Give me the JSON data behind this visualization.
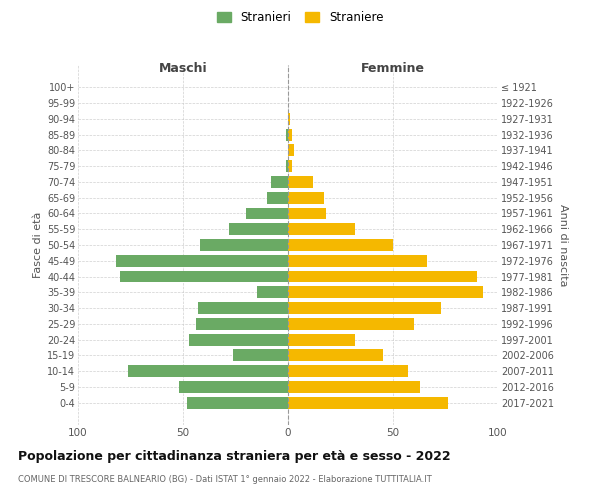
{
  "age_groups": [
    "100+",
    "95-99",
    "90-94",
    "85-89",
    "80-84",
    "75-79",
    "70-74",
    "65-69",
    "60-64",
    "55-59",
    "50-54",
    "45-49",
    "40-44",
    "35-39",
    "30-34",
    "25-29",
    "20-24",
    "15-19",
    "10-14",
    "5-9",
    "0-4"
  ],
  "birth_years": [
    "≤ 1921",
    "1922-1926",
    "1927-1931",
    "1932-1936",
    "1937-1941",
    "1942-1946",
    "1947-1951",
    "1952-1956",
    "1957-1961",
    "1962-1966",
    "1967-1971",
    "1972-1976",
    "1977-1981",
    "1982-1986",
    "1987-1991",
    "1992-1996",
    "1997-2001",
    "2002-2006",
    "2007-2011",
    "2012-2016",
    "2017-2021"
  ],
  "males": [
    0,
    0,
    0,
    1,
    0,
    1,
    8,
    10,
    20,
    28,
    42,
    82,
    80,
    15,
    43,
    44,
    47,
    26,
    76,
    52,
    48
  ],
  "females": [
    0,
    0,
    1,
    2,
    3,
    2,
    12,
    17,
    18,
    32,
    50,
    66,
    90,
    93,
    73,
    60,
    32,
    45,
    57,
    63,
    76
  ],
  "male_color": "#6aaa64",
  "female_color": "#f5b800",
  "background_color": "#ffffff",
  "grid_color": "#cccccc",
  "title": "Popolazione per cittadinanza straniera per età e sesso - 2022",
  "subtitle": "COMUNE DI TRESCORE BALNEARIO (BG) - Dati ISTAT 1° gennaio 2022 - Elaborazione TUTTITALIA.IT",
  "xlabel_left": "Maschi",
  "xlabel_right": "Femmine",
  "ylabel_left": "Fasce di età",
  "ylabel_right": "Anni di nascita",
  "legend_male": "Stranieri",
  "legend_female": "Straniere",
  "xlim": 100
}
